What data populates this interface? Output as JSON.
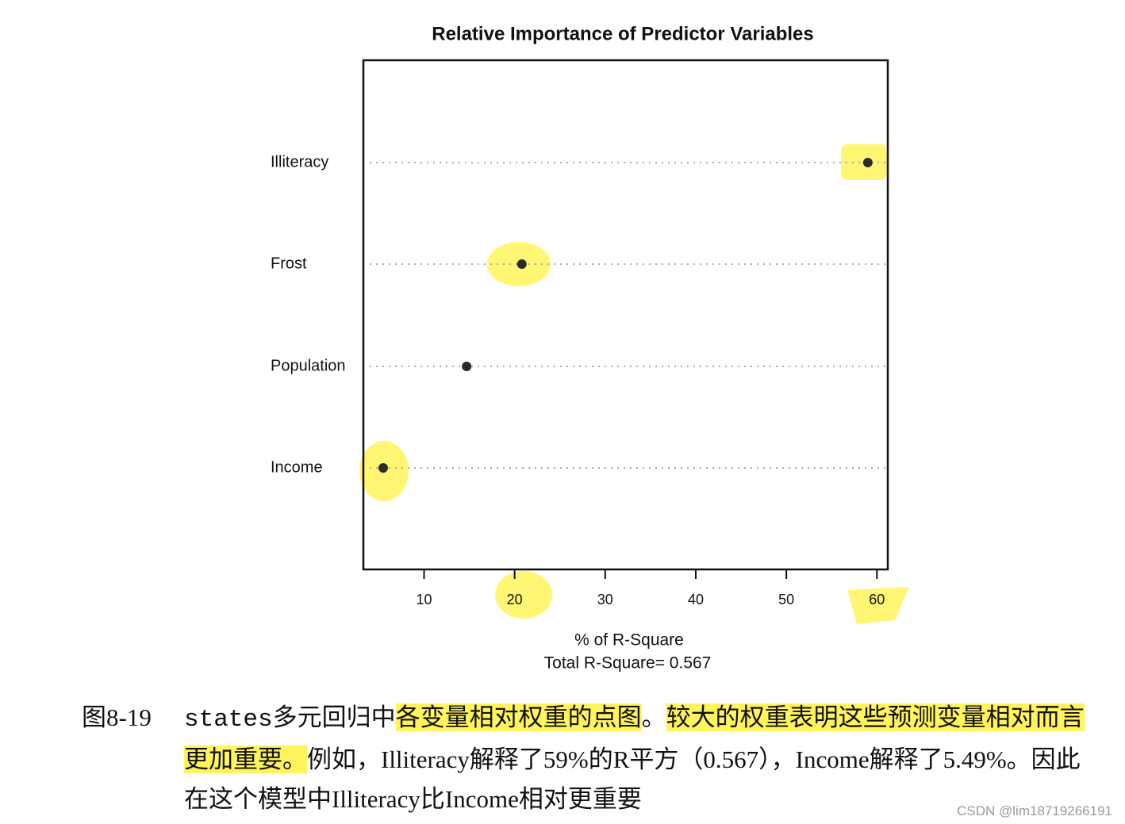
{
  "chart_data": {
    "type": "dot",
    "title": "Relative Importance of Predictor Variables",
    "categories": [
      "Illiteracy",
      "Frost",
      "Population",
      "Income"
    ],
    "values": [
      59.0,
      20.8,
      14.7,
      5.49
    ],
    "color": "#2b2b2b",
    "xlabel": "% of R-Square",
    "subtitle": "Total R-Square= 0.567",
    "xlim": [
      3.3,
      61.2
    ],
    "xticks": [
      10,
      20,
      30,
      40,
      50,
      60
    ]
  },
  "caption": {
    "label": "图8-19",
    "segments": [
      {
        "text": "states",
        "mono": true
      },
      {
        "text": "多元回归中"
      },
      {
        "text": "各变量相对权重的点图",
        "highlight": true
      },
      {
        "text": "。"
      },
      {
        "text": "较大的权重表明这些预测变量相对而言更加重要。",
        "highlight": true
      },
      {
        "text": "例如，Illiteracy解释了59%的R平方（0.567），Income解释了5.49%。因此在这个模型中Illiteracy比Income相对更重要"
      }
    ]
  },
  "watermark": "CSDN @lim18719266191"
}
